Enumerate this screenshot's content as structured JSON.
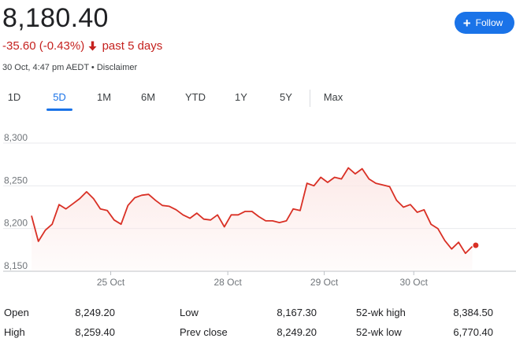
{
  "quote": {
    "price": "8,180.40",
    "change": "-35.60 (-0.43%)",
    "period": "past 5 days",
    "timestamp": "30 Oct, 4:47 pm AEDT",
    "separator": " • ",
    "disclaimer": "Disclaimer",
    "down_color": "#c5221f"
  },
  "follow_button": {
    "label": "Follow",
    "icon": "plus-icon",
    "color": "#1a73e8"
  },
  "ranges": {
    "tabs": [
      "1D",
      "5D",
      "1M",
      "6M",
      "YTD",
      "1Y",
      "5Y",
      "Max"
    ],
    "selected": "5D"
  },
  "chart_data": {
    "type": "area",
    "line_color": "#d93025",
    "ylim": [
      8150,
      8300
    ],
    "yticks": [
      8300,
      8250,
      8200,
      8150
    ],
    "ytick_labels": [
      "8,300",
      "8,250",
      "8,200",
      "8,150"
    ],
    "xtick_labels": [
      "25 Oct",
      "28 Oct",
      "29 Oct",
      "30 Oct"
    ],
    "xtick_positions": [
      11.5,
      28.5,
      42.5,
      55.5
    ],
    "x_range": [
      0,
      70
    ],
    "grid": true,
    "values": [
      8215,
      8185,
      8198,
      8205,
      8228,
      8223,
      8229,
      8235,
      8243,
      8235,
      8223,
      8221,
      8210,
      8205,
      8227,
      8236,
      8239,
      8240,
      8233,
      8227,
      8226,
      8222,
      8216,
      8212,
      8218,
      8211,
      8210,
      8216,
      8202,
      8216,
      8216,
      8220,
      8220,
      8214,
      8209,
      8209,
      8207,
      8209,
      8223,
      8221,
      8253,
      8250,
      8260,
      8254,
      8260,
      8258,
      8271,
      8264,
      8270,
      8258,
      8253,
      8251,
      8249,
      8233,
      8225,
      8228,
      8219,
      8222,
      8205,
      8200,
      8186,
      8176,
      8184,
      8171,
      8179
    ],
    "last_value": 8180.4
  },
  "stats": {
    "col1": [
      {
        "label": "Open",
        "value": "8,249.20"
      },
      {
        "label": "High",
        "value": "8,259.40"
      }
    ],
    "col2": [
      {
        "label": "Low",
        "value": "8,167.30"
      },
      {
        "label": "Prev close",
        "value": "8,249.20"
      }
    ],
    "col3": [
      {
        "label": "52-wk high",
        "value": "8,384.50"
      },
      {
        "label": "52-wk low",
        "value": "6,770.40"
      }
    ]
  }
}
